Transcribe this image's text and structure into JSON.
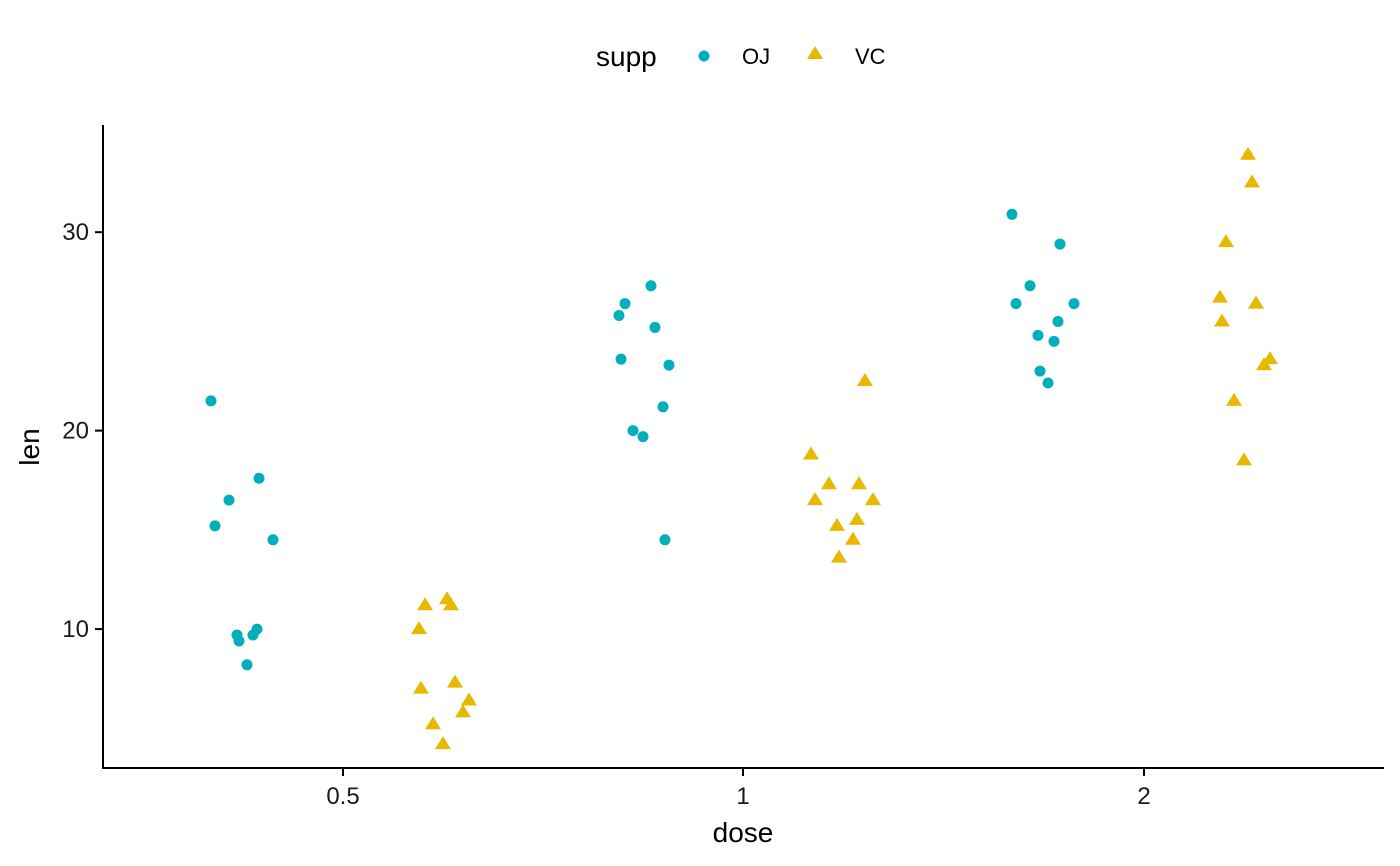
{
  "chart_data": {
    "type": "scatter",
    "xlabel": "dose",
    "ylabel": "len",
    "x_categories": [
      "0.5",
      "1",
      "2"
    ],
    "y_ticks": [
      10,
      20,
      30
    ],
    "ylim": [
      3.0,
      35.4
    ],
    "legend": {
      "title": "supp",
      "position": "top"
    },
    "grid": false,
    "colors": {
      "OJ": "#00AFBB",
      "VC": "#E7B800"
    },
    "series": [
      {
        "name": "OJ",
        "shape": "circle",
        "points": [
          {
            "x": "0.5",
            "y": 21.5
          },
          {
            "x": "0.5",
            "y": 17.6
          },
          {
            "x": "0.5",
            "y": 16.5
          },
          {
            "x": "0.5",
            "y": 15.2
          },
          {
            "x": "0.5",
            "y": 14.5
          },
          {
            "x": "0.5",
            "y": 10.0
          },
          {
            "x": "0.5",
            "y": 9.7
          },
          {
            "x": "0.5",
            "y": 9.7
          },
          {
            "x": "0.5",
            "y": 9.4
          },
          {
            "x": "0.5",
            "y": 8.2
          },
          {
            "x": "1",
            "y": 27.3
          },
          {
            "x": "1",
            "y": 26.4
          },
          {
            "x": "1",
            "y": 25.8
          },
          {
            "x": "1",
            "y": 25.2
          },
          {
            "x": "1",
            "y": 23.6
          },
          {
            "x": "1",
            "y": 23.3
          },
          {
            "x": "1",
            "y": 21.2
          },
          {
            "x": "1",
            "y": 20.0
          },
          {
            "x": "1",
            "y": 19.7
          },
          {
            "x": "1",
            "y": 14.5
          },
          {
            "x": "2",
            "y": 30.9
          },
          {
            "x": "2",
            "y": 29.4
          },
          {
            "x": "2",
            "y": 27.3
          },
          {
            "x": "2",
            "y": 26.4
          },
          {
            "x": "2",
            "y": 26.4
          },
          {
            "x": "2",
            "y": 25.5
          },
          {
            "x": "2",
            "y": 24.8
          },
          {
            "x": "2",
            "y": 24.5
          },
          {
            "x": "2",
            "y": 23.0
          },
          {
            "x": "2",
            "y": 22.4
          }
        ]
      },
      {
        "name": "VC",
        "shape": "triangle",
        "points": [
          {
            "x": "0.5",
            "y": 11.5
          },
          {
            "x": "0.5",
            "y": 11.2
          },
          {
            "x": "0.5",
            "y": 11.2
          },
          {
            "x": "0.5",
            "y": 10.0
          },
          {
            "x": "0.5",
            "y": 7.3
          },
          {
            "x": "0.5",
            "y": 7.0
          },
          {
            "x": "0.5",
            "y": 6.4
          },
          {
            "x": "0.5",
            "y": 5.8
          },
          {
            "x": "0.5",
            "y": 5.2
          },
          {
            "x": "0.5",
            "y": 4.2
          },
          {
            "x": "1",
            "y": 22.5
          },
          {
            "x": "1",
            "y": 18.8
          },
          {
            "x": "1",
            "y": 17.3
          },
          {
            "x": "1",
            "y": 17.3
          },
          {
            "x": "1",
            "y": 16.5
          },
          {
            "x": "1",
            "y": 16.5
          },
          {
            "x": "1",
            "y": 15.5
          },
          {
            "x": "1",
            "y": 15.2
          },
          {
            "x": "1",
            "y": 14.5
          },
          {
            "x": "1",
            "y": 13.6
          },
          {
            "x": "2",
            "y": 33.9
          },
          {
            "x": "2",
            "y": 32.5
          },
          {
            "x": "2",
            "y": 29.5
          },
          {
            "x": "2",
            "y": 26.7
          },
          {
            "x": "2",
            "y": 26.4
          },
          {
            "x": "2",
            "y": 25.5
          },
          {
            "x": "2",
            "y": 23.6
          },
          {
            "x": "2",
            "y": 23.3
          },
          {
            "x": "2",
            "y": 21.5
          },
          {
            "x": "2",
            "y": 18.5
          }
        ]
      }
    ]
  }
}
